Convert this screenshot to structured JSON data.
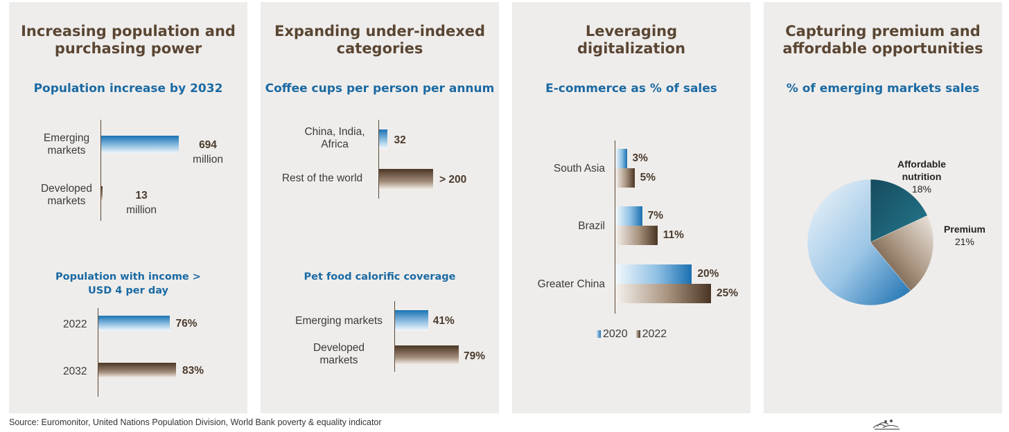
{
  "panels": [
    {
      "title_l1": "Increasing population and",
      "title_l2": "purchasing power",
      "chart1_title": "Population increase by 2032",
      "chart2_title_l1": "Population with income >",
      "chart2_title_l2": "USD 4 per day"
    },
    {
      "title_l1": "Expanding under-indexed",
      "title_l2": "categories",
      "chart1_title": "Coffee cups per person per annum",
      "chart2_title": "Pet food calorific coverage"
    },
    {
      "title_l1": "Leveraging",
      "title_l2": "digitalization",
      "chart1_title": "E-commerce as % of sales"
    },
    {
      "title_l1": "Capturing premium and",
      "title_l2": "affordable opportunities",
      "chart1_title": "% of emerging markets sales"
    }
  ],
  "chart_data": [
    {
      "type": "bar",
      "title": "Population increase by 2032",
      "categories": [
        "Emerging markets",
        "Developed markets"
      ],
      "category_lines": [
        [
          "Emerging",
          "markets"
        ],
        [
          "Developed",
          "markets"
        ]
      ],
      "values": [
        694,
        13
      ],
      "unit": "million",
      "labels": [
        [
          "694",
          "million"
        ],
        [
          "13",
          "million"
        ]
      ]
    },
    {
      "type": "bar",
      "title": "Population with income > USD 4 per day",
      "categories": [
        "2022",
        "2032"
      ],
      "values": [
        76,
        83
      ],
      "labels": [
        "76%",
        "83%"
      ]
    },
    {
      "type": "bar",
      "title": "Coffee cups per person per annum",
      "categories": [
        "China, India, Africa",
        "Rest of the world"
      ],
      "category_lines": [
        [
          "China, India,",
          "Africa"
        ],
        [
          "Rest of the world"
        ]
      ],
      "values": [
        32,
        200
      ],
      "labels": [
        "32",
        "> 200"
      ]
    },
    {
      "type": "bar",
      "title": "Pet food calorific coverage",
      "categories": [
        "Emerging markets",
        "Developed markets"
      ],
      "category_lines": [
        [
          "Emerging markets"
        ],
        [
          "Developed",
          "markets"
        ]
      ],
      "values": [
        41,
        79
      ],
      "labels": [
        "41%",
        "79%"
      ]
    },
    {
      "type": "bar",
      "title": "E-commerce as % of sales",
      "categories": [
        "South Asia",
        "Brazil",
        "Greater China"
      ],
      "series": [
        {
          "name": "2020",
          "values": [
            3,
            7,
            20
          ],
          "labels": [
            "3%",
            "7%",
            "20%"
          ]
        },
        {
          "name": "2022",
          "values": [
            5,
            11,
            25
          ],
          "labels": [
            "5%",
            "11%",
            "25%"
          ]
        }
      ],
      "legend_position": "bottom"
    },
    {
      "type": "pie",
      "title": "% of emerging markets sales",
      "slices": [
        {
          "name": "Affordable nutrition",
          "name_lines": [
            "Affordable",
            "nutrition"
          ],
          "value": 18,
          "label": "18%",
          "color": "#1d5f72"
        },
        {
          "name": "Premium",
          "name_lines": [
            "Premium"
          ],
          "value": 21,
          "label": "21%",
          "color": "#8c7560"
        },
        {
          "name": "",
          "value": 61,
          "color": "#5fa3d4"
        }
      ]
    }
  ],
  "footer": {
    "source": "Source: Euromonitor, United Nations Population Division, World Bank poverty & equality indicator"
  },
  "colors": {
    "title": "#5a4633",
    "subtitle": "#1a6aa3",
    "panel_bg": "#efedeb",
    "blue": "#1a6fb0",
    "brown": "#4a3423"
  },
  "icons": {
    "footer_logo": "nestle-nest-logo"
  }
}
